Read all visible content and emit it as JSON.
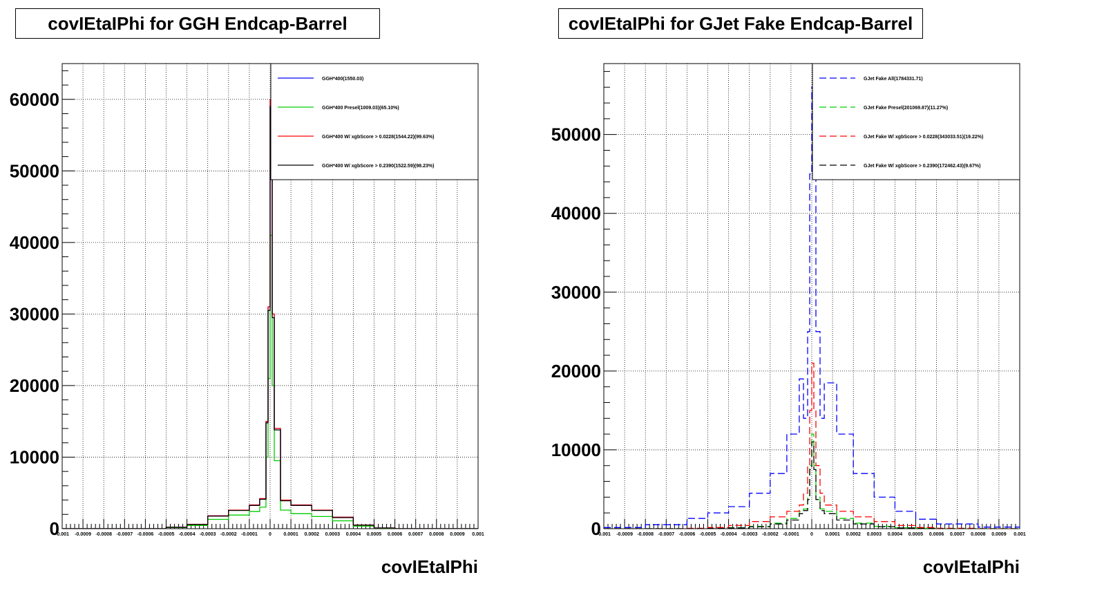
{
  "chart_data": [
    {
      "type": "line",
      "title": "covIEtaIPhi for GGH Endcap-Barrel",
      "xlabel": "covIEtaIPhi",
      "ylabel": "",
      "xlim": [
        -0.001,
        0.001
      ],
      "ylim": [
        0,
        65000
      ],
      "grid": true,
      "line_style": "solid",
      "x_tick_labels": [
        "-0.001",
        "-0.0009",
        "-0.0008",
        "-0.0007",
        "-0.0006",
        "-0.0005",
        "-0.0004",
        "-0.0003",
        "-0.0002",
        "-0.0001",
        "0",
        "0.0001",
        "0.0002",
        "0.0003",
        "0.0004",
        "0.0005",
        "0.0006",
        "0.0007",
        "0.0008",
        "0.0009",
        "0.001"
      ],
      "y_tick_labels": [
        "0",
        "10000",
        "20000",
        "30000",
        "40000",
        "50000",
        "60000"
      ],
      "legend_position": "top-right",
      "x": [
        -0.001,
        -0.0008,
        -0.0006,
        -0.0005,
        -0.0004,
        -0.0003,
        -0.0002,
        -0.0001,
        -5e-05,
        -2e-05,
        -1e-05,
        0,
        1e-05,
        2e-05,
        5e-05,
        0.0001,
        0.0002,
        0.0003,
        0.0004,
        0.0005,
        0.0006,
        0.0008,
        0.001
      ],
      "series": [
        {
          "name": "GGH*400(1550.03)",
          "color": "#0000ff",
          "values": [
            0,
            0,
            0,
            200,
            600,
            1800,
            2600,
            3300,
            4200,
            15000,
            31000,
            60000,
            30000,
            14000,
            4000,
            3300,
            2600,
            1600,
            500,
            100,
            0,
            0,
            0
          ]
        },
        {
          "name": "GGH*400 Presel(1009.03)(65.10%)",
          "color": "#00cc00",
          "values": [
            0,
            0,
            0,
            150,
            450,
            1300,
            1900,
            2400,
            3000,
            10000,
            21000,
            41000,
            20000,
            9500,
            2600,
            2100,
            1700,
            1100,
            350,
            70,
            0,
            0,
            0
          ]
        },
        {
          "name": "GGH*400 W/ xgbScore > 0.0228(1544.22)(99.63%)",
          "color": "#ff0000",
          "values": [
            0,
            0,
            0,
            200,
            600,
            1800,
            2600,
            3300,
            4200,
            15000,
            31000,
            60000,
            30000,
            14000,
            4000,
            3300,
            2600,
            1600,
            500,
            100,
            0,
            0,
            0
          ]
        },
        {
          "name": "GGH*400 W/ xgbScore > 0.2390(1522.59)(98.23%)",
          "color": "#000000",
          "values": [
            0,
            0,
            0,
            190,
            580,
            1750,
            2550,
            3250,
            4100,
            14800,
            30500,
            59000,
            29500,
            13800,
            3900,
            3250,
            2550,
            1550,
            480,
            95,
            0,
            0,
            0
          ]
        }
      ]
    },
    {
      "type": "line",
      "title": "covIEtaIPhi for GJet Fake Endcap-Barrel",
      "xlabel": "covIEtaIPhi",
      "ylabel": "",
      "xlim": [
        -0.001,
        0.001
      ],
      "ylim": [
        0,
        59000
      ],
      "grid": true,
      "line_style": "dashed",
      "x_tick_labels": [
        "-0.001",
        "-0.0009",
        "-0.0008",
        "-0.0007",
        "-0.0006",
        "-0.0005",
        "-0.0004",
        "-0.0003",
        "-0.0002",
        "-0.0001",
        "0",
        "0.0001",
        "0.0002",
        "0.0003",
        "0.0004",
        "0.0005",
        "0.0006",
        "0.0007",
        "0.0008",
        "0.0009",
        "0.001"
      ],
      "y_tick_labels": [
        "0",
        "10000",
        "20000",
        "30000",
        "40000",
        "50000"
      ],
      "legend_position": "top-right",
      "x": [
        -0.001,
        -0.0008,
        -0.0006,
        -0.0005,
        -0.0004,
        -0.0003,
        -0.0002,
        -0.00012,
        -6e-05,
        -4e-05,
        -2e-05,
        -1e-05,
        0,
        1e-05,
        2e-05,
        4e-05,
        6e-05,
        0.00012,
        0.0002,
        0.0003,
        0.0004,
        0.0005,
        0.0006,
        0.0008,
        0.001
      ],
      "series": [
        {
          "name": "GJet Fake All(1784331.71)",
          "color": "#0000ff",
          "values": [
            150,
            500,
            1300,
            2000,
            2800,
            4500,
            7000,
            12000,
            19000,
            14000,
            25000,
            45000,
            56000,
            45000,
            25000,
            14000,
            18500,
            12000,
            7000,
            4000,
            2200,
            1200,
            600,
            200,
            80
          ]
        },
        {
          "name": "GJet Fake Presel(201069.87)(11.27%)",
          "color": "#00cc00",
          "values": [
            0,
            0,
            0,
            50,
            120,
            300,
            700,
            1300,
            2200,
            2500,
            4000,
            8000,
            12000,
            8000,
            4000,
            2500,
            2200,
            1300,
            700,
            300,
            120,
            50,
            0,
            0,
            0
          ]
        },
        {
          "name": "GJet Fake W/ xgbScore > 0.0228(343033.51)(19.22%)",
          "color": "#ff0000",
          "values": [
            0,
            0,
            50,
            150,
            400,
            900,
            1500,
            2200,
            3000,
            4500,
            8000,
            15000,
            21000,
            15000,
            8000,
            4500,
            3000,
            2200,
            1500,
            900,
            400,
            150,
            50,
            0,
            0
          ]
        },
        {
          "name": "GJet Fake W/ xgbScore > 0.2390(172462.43)(9.67%)",
          "color": "#000000",
          "values": [
            0,
            0,
            0,
            40,
            100,
            250,
            600,
            1100,
            1900,
            2300,
            3700,
            7500,
            11000,
            7500,
            3700,
            2300,
            1900,
            1100,
            600,
            250,
            100,
            40,
            0,
            0,
            0
          ]
        }
      ]
    }
  ]
}
